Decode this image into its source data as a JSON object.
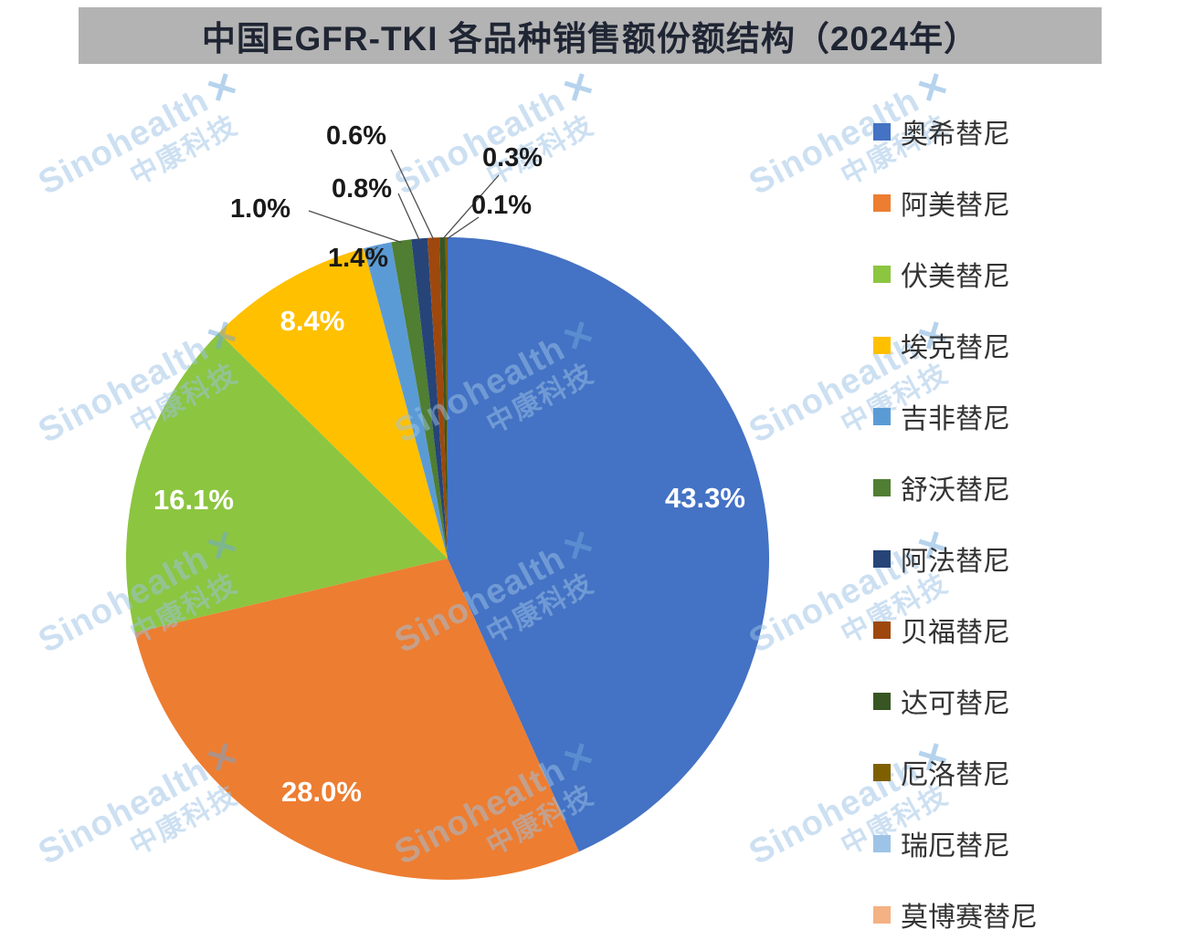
{
  "header": {
    "title": "中国EGFR-TKI 各品种销售额份额结构（2024年）"
  },
  "watermark": {
    "brand": "Sinohealth",
    "brand_cn": "中康科技",
    "logo_glyph": "✕",
    "logo_icon": "x-logo-icon",
    "color": "#9cc3e6"
  },
  "chart_data": {
    "type": "pie",
    "title": "中国EGFR-TKI 各品种销售额份额结构（2024年）",
    "legend_position": "right",
    "units": "%",
    "series": [
      {
        "name": "奥希替尼",
        "value": 43.3,
        "label": "43.3%",
        "color": "#4472C4"
      },
      {
        "name": "阿美替尼",
        "value": 28.0,
        "label": "28.0%",
        "color": "#ED7D31"
      },
      {
        "name": "伏美替尼",
        "value": 16.1,
        "label": "16.1%",
        "color": "#8CC540"
      },
      {
        "name": "埃克替尼",
        "value": 8.4,
        "label": "8.4%",
        "color": "#FFC000"
      },
      {
        "name": "吉非替尼",
        "value": 1.4,
        "label": "1.4%",
        "color": "#5B9BD5"
      },
      {
        "name": "舒沃替尼",
        "value": 1.0,
        "label": "1.0%",
        "color": "#507E32"
      },
      {
        "name": "阿法替尼",
        "value": 0.8,
        "label": "0.8%",
        "color": "#264478"
      },
      {
        "name": "贝福替尼",
        "value": 0.6,
        "label": "0.6%",
        "color": "#9E480E"
      },
      {
        "name": "达可替尼",
        "value": 0.3,
        "label": "0.3%",
        "color": "#375623"
      },
      {
        "name": "厄洛替尼",
        "value": 0.1,
        "label": "0.1%",
        "color": "#7F6000"
      },
      {
        "name": "瑞厄替尼",
        "value": 0.0,
        "label": "",
        "color": "#9DC3E6"
      },
      {
        "name": "莫博赛替尼",
        "value": 0.0,
        "label": "",
        "color": "#F4B183"
      }
    ]
  }
}
